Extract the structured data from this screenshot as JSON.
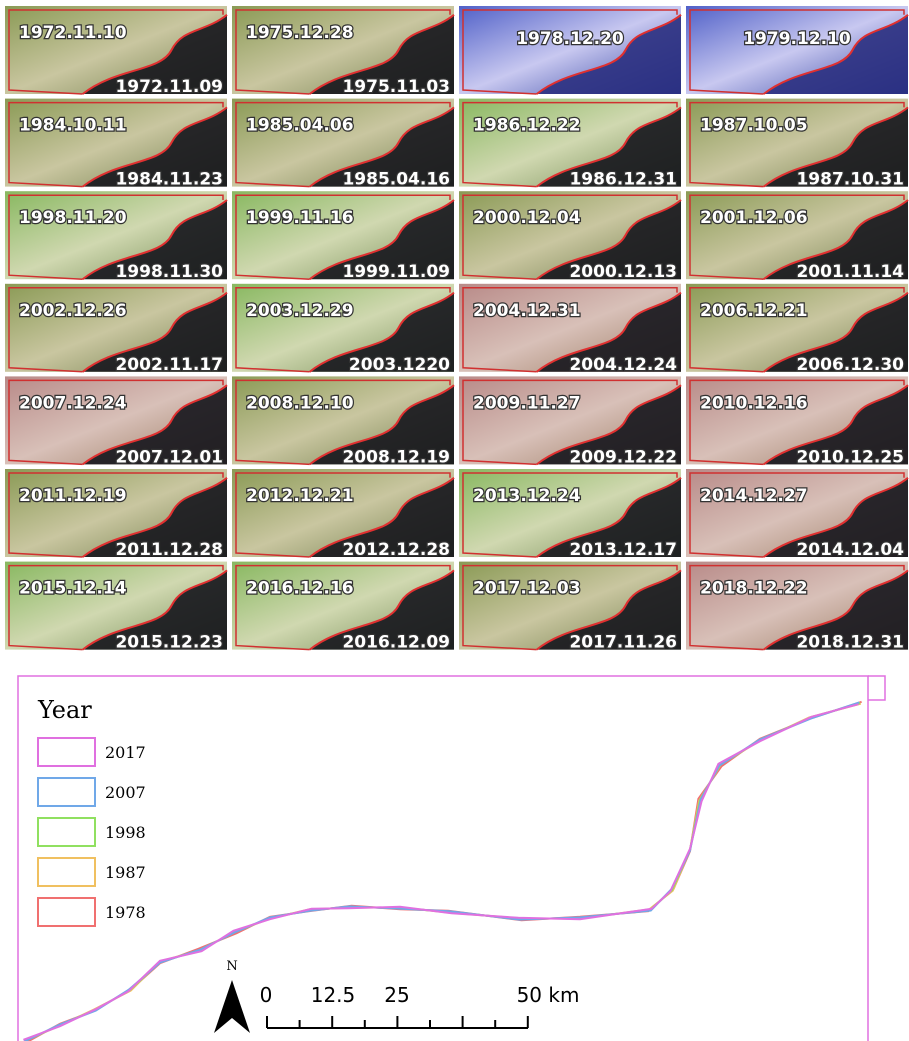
{
  "tiles": [
    {
      "top": "1972.11.10",
      "bottom": "1972.11.09"
    },
    {
      "top": "1975.12.28",
      "bottom": "1975.11.03"
    },
    {
      "top": "1978.12.20"
    },
    {
      "top": "1979.12.10"
    },
    {
      "top": "1984.10.11",
      "bottom": "1984.11.23"
    },
    {
      "top": "1985.04.06",
      "bottom": "1985.04.16"
    },
    {
      "top": "1986.12.22",
      "bottom": "1986.12.31"
    },
    {
      "top": "1987.10.05",
      "bottom": "1987.10.31"
    },
    {
      "top": "1998.11.20",
      "bottom": "1998.11.30"
    },
    {
      "top": "1999.11.16",
      "bottom": "1999.11.09"
    },
    {
      "top": "2000.12.04",
      "bottom": "2000.12.13"
    },
    {
      "top": "2001.12.06",
      "bottom": "2001.11.14"
    },
    {
      "top": "2002.12.26",
      "bottom": "2002.11.17"
    },
    {
      "top": "2003.12.29",
      "bottom": "2003.1220"
    },
    {
      "top": "2004.12.31",
      "bottom": "2004.12.24"
    },
    {
      "top": "2006.12.21",
      "bottom": "2006.12.30"
    },
    {
      "top": "2007.12.24",
      "bottom": "2007.12.01"
    },
    {
      "top": "2008.12.10",
      "bottom": "2008.12.19"
    },
    {
      "top": "2009.11.27",
      "bottom": "2009.12.22"
    },
    {
      "top": "2010.12.16",
      "bottom": "2010.12.25"
    },
    {
      "top": "2011.12.19",
      "bottom": "2011.12.28"
    },
    {
      "top": "2012.12.21",
      "bottom": "2012.12.28"
    },
    {
      "top": "2013.12.24",
      "bottom": "2013.12.17"
    },
    {
      "top": "2014.12.27",
      "bottom": "2014.12.04"
    },
    {
      "top": "2015.12.14",
      "bottom": "2015.12.23"
    },
    {
      "top": "2016.12.16",
      "bottom": "2016.12.09"
    },
    {
      "top": "2017.12.03",
      "bottom": "2017.11.26"
    },
    {
      "top": "2018.12.22",
      "bottom": "2018.12.31"
    }
  ],
  "map": {
    "legend": {
      "title": "Year",
      "items": [
        {
          "label": "2017",
          "color": "#e070e0"
        },
        {
          "label": "2007",
          "color": "#70a8e8"
        },
        {
          "label": "1998",
          "color": "#90e060"
        },
        {
          "label": "1987",
          "color": "#f0c060"
        },
        {
          "label": "1978",
          "color": "#f07070"
        }
      ]
    },
    "north": "N",
    "scale": [
      "0",
      "12.5",
      "25",
      "50 km"
    ]
  }
}
